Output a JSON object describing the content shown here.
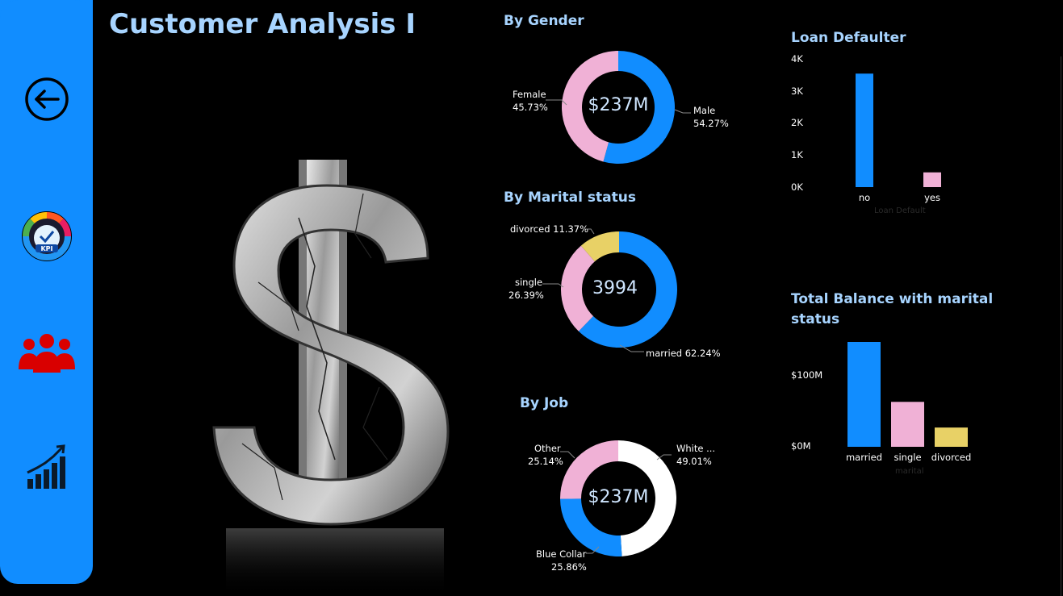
{
  "page": {
    "title": "Customer Analysis I"
  },
  "nav": {
    "items": [
      {
        "name": "back-arrow-icon"
      },
      {
        "name": "kpi-gauge-icon"
      },
      {
        "name": "customers-icon"
      },
      {
        "name": "growth-chart-icon"
      }
    ]
  },
  "colors": {
    "blue": "#118dff",
    "pink": "#f0b1d6",
    "yellow": "#e8d166",
    "white": "#ffffff",
    "title": "#a7d4ff"
  },
  "gender": {
    "title": "By Gender",
    "center": "$237M",
    "female_label": "Female",
    "female_pct": "45.73%",
    "male_label": "Male",
    "male_pct": "54.27%"
  },
  "marital": {
    "title": "By Marital status",
    "center": "3994",
    "divorced_label": "divorced 11.37%",
    "single_label": "single",
    "single_pct": "26.39%",
    "married_label": "married 62.24%"
  },
  "job": {
    "title": "By Job",
    "center": "$237M",
    "other_label": "Other",
    "other_pct": "25.14%",
    "white_label": "White ...",
    "white_pct": "49.01%",
    "blue_label": "Blue Collar",
    "blue_pct": "25.86%"
  },
  "loan": {
    "title": "Loan Defaulter",
    "y_ticks": [
      "4K",
      "3K",
      "2K",
      "1K",
      "0K"
    ],
    "xlabel": "Loan Default"
  },
  "balance": {
    "title_line1": "Total Balance with marital",
    "title_line2": "status",
    "y_ticks": [
      "$100M",
      "$0M"
    ],
    "xlabel": "marital"
  },
  "chart_data": [
    {
      "type": "pie",
      "title": "By Gender",
      "categories": [
        "Male",
        "Female"
      ],
      "values": [
        54.27,
        45.73
      ],
      "colors": [
        "#118dff",
        "#f0b1d6"
      ]
    },
    {
      "type": "pie",
      "title": "By Marital status",
      "categories": [
        "married",
        "single",
        "divorced"
      ],
      "values": [
        62.24,
        26.39,
        11.37
      ],
      "colors": [
        "#118dff",
        "#f0b1d6",
        "#e8d166"
      ]
    },
    {
      "type": "pie",
      "title": "By Job",
      "categories": [
        "White ...",
        "Blue Collar",
        "Other"
      ],
      "values": [
        49.01,
        25.86,
        25.14
      ],
      "colors": [
        "#ffffff",
        "#118dff",
        "#f0b1d6"
      ]
    },
    {
      "type": "bar",
      "title": "Loan Defaulter",
      "categories": [
        "no",
        "yes"
      ],
      "values": [
        3540,
        460
      ],
      "ylim": [
        0,
        4000
      ],
      "xlabel": "Loan Default",
      "colors": [
        "#118dff",
        "#f0b1d6"
      ]
    },
    {
      "type": "bar",
      "title": "Total Balance with marital status",
      "categories": [
        "married",
        "single",
        "divorced"
      ],
      "values": [
        147,
        63,
        27
      ],
      "ylim": [
        0,
        147
      ],
      "xlabel": "marital",
      "colors": [
        "#118dff",
        "#f0b1d6",
        "#e8d166"
      ]
    }
  ]
}
